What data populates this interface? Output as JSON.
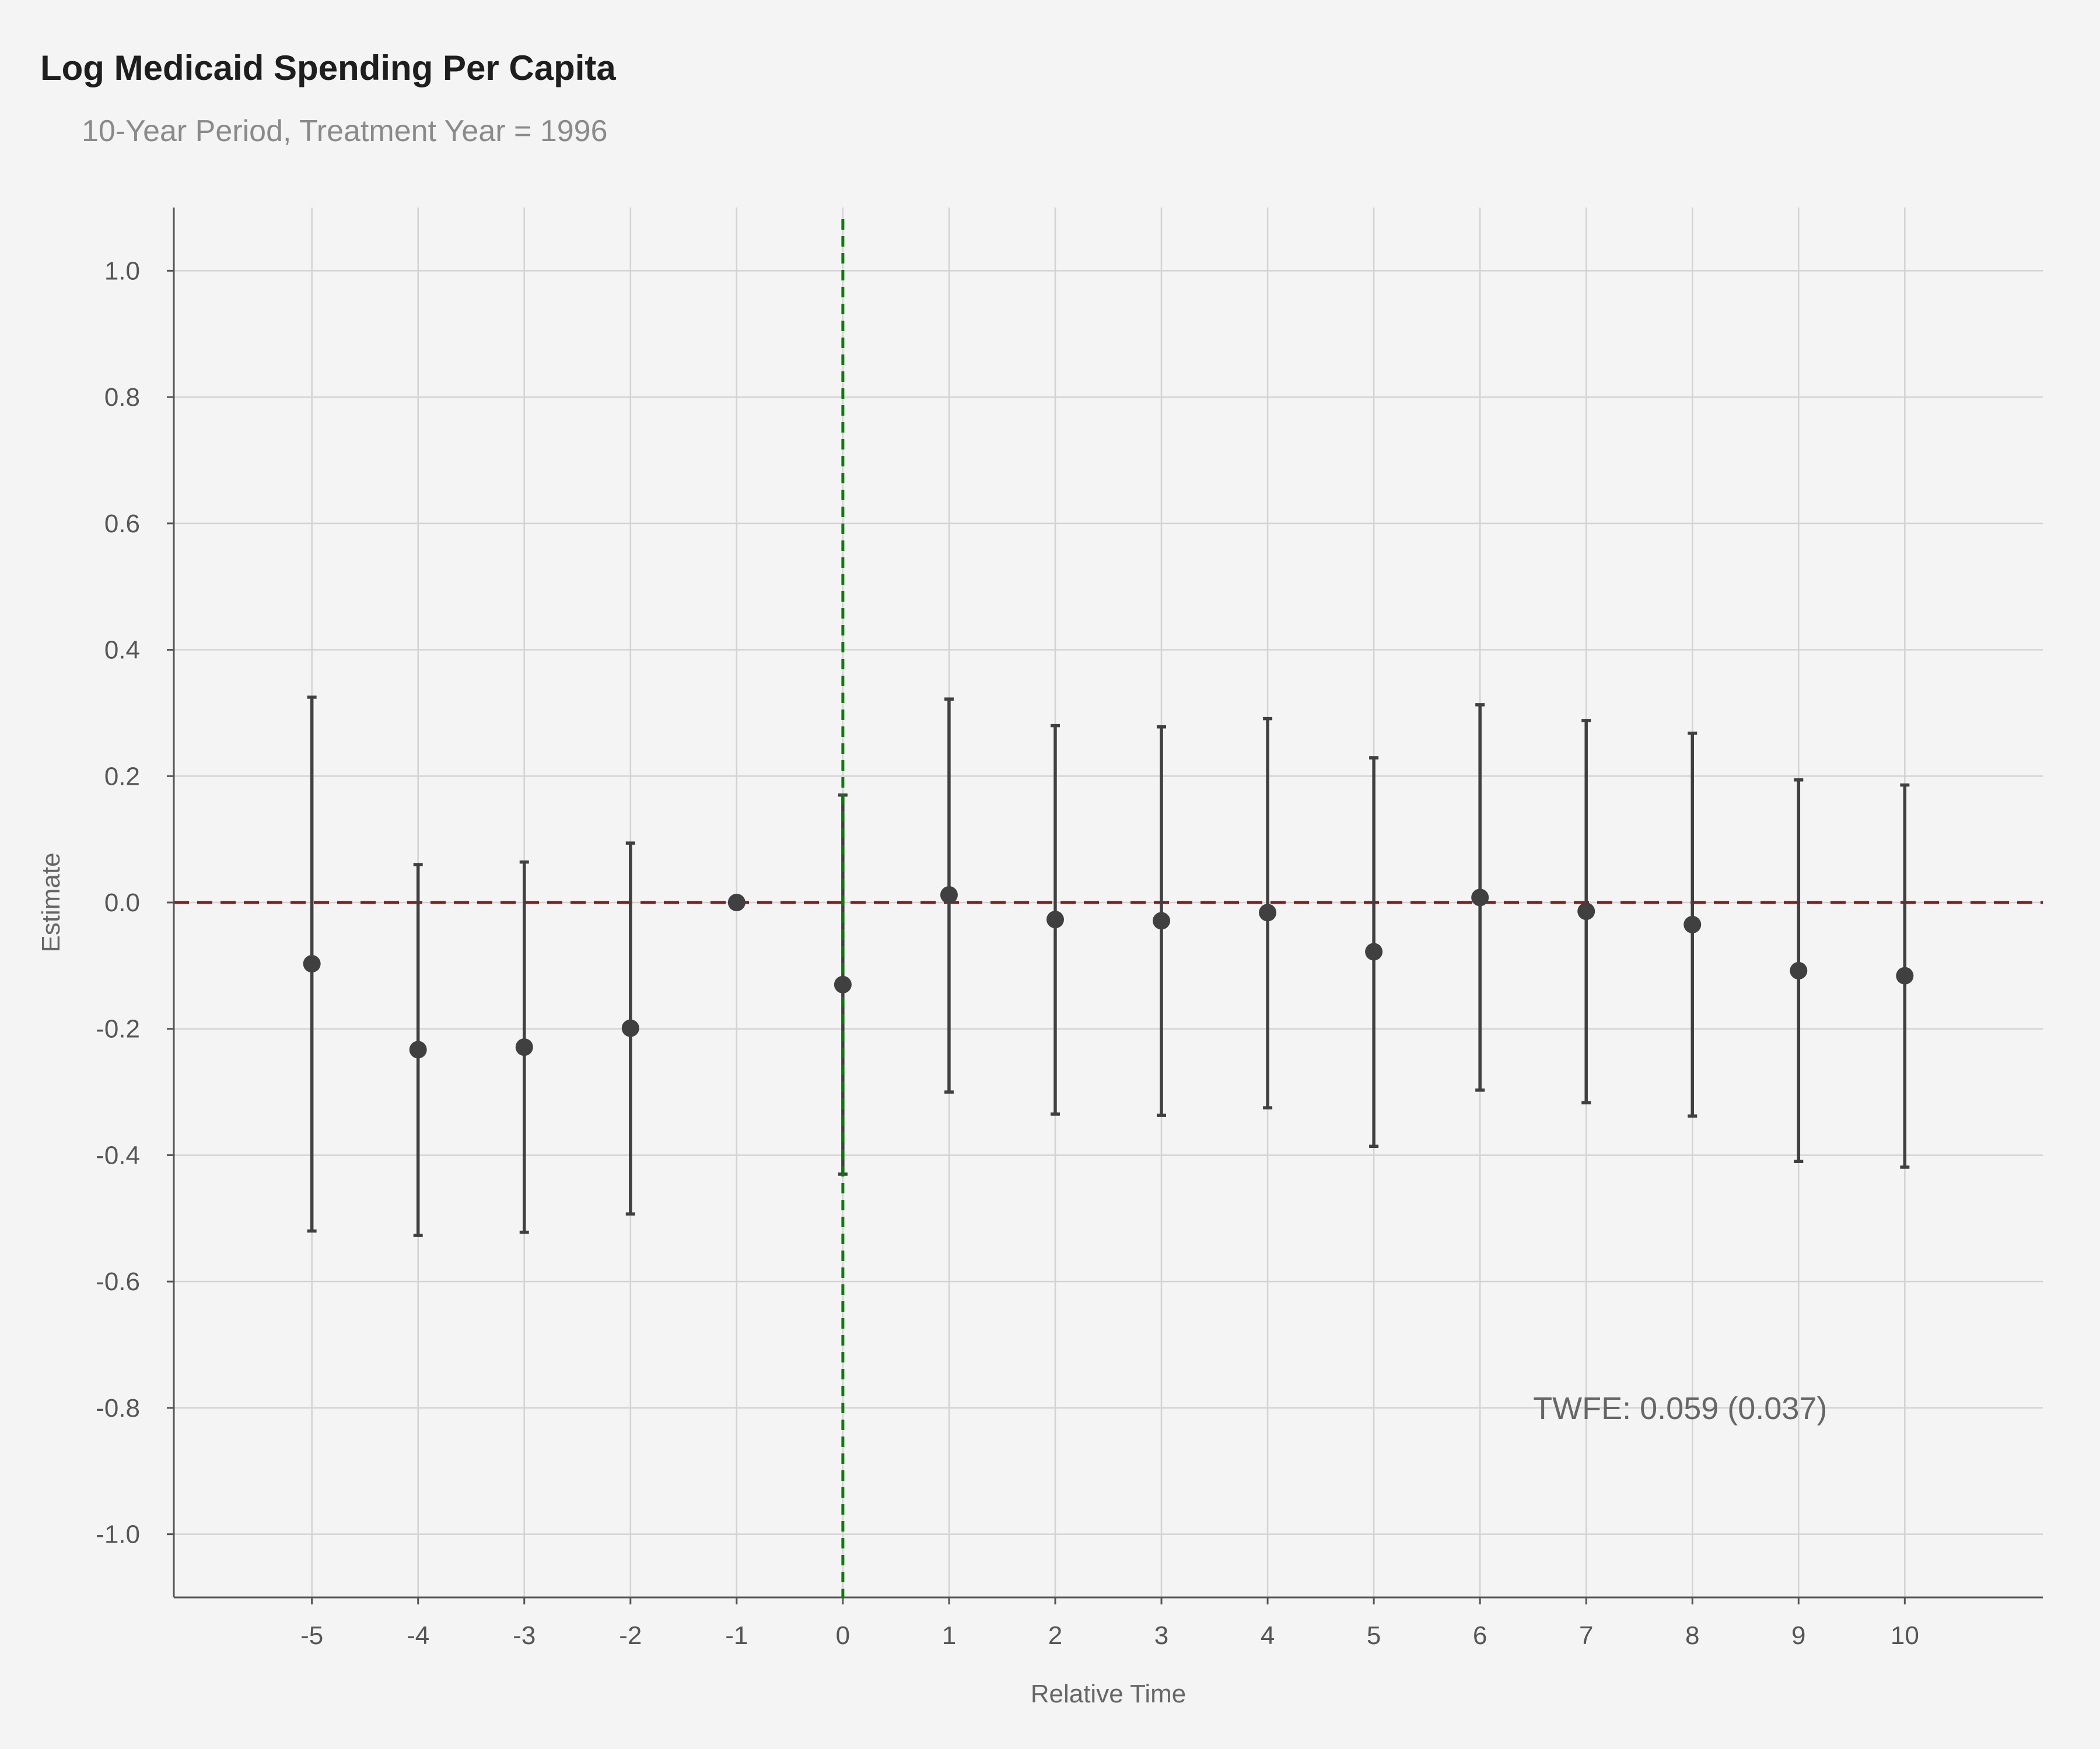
{
  "chart_data": {
    "type": "errorbar",
    "title": "Log Medicaid Spending Per Capita",
    "subtitle": "10-Year Period, Treatment Year = 1996",
    "xlabel": "Relative Time",
    "ylabel": "Estimate",
    "xlim": [
      -6.3,
      11.3
    ],
    "ylim": [
      -1.1,
      1.1
    ],
    "x_ticks": [
      -5,
      -4,
      -3,
      -2,
      -1,
      0,
      1,
      2,
      3,
      4,
      5,
      6,
      7,
      8,
      9,
      10
    ],
    "y_ticks": [
      1.0,
      0.8,
      0.6,
      0.4,
      0.2,
      0.0,
      -0.2,
      -0.4,
      -0.6,
      -0.8,
      -1.0
    ],
    "y_tick_labels": [
      "1.0",
      "0.8",
      "0.6",
      "0.4",
      "0.2",
      "0.0",
      "-0.2",
      "-0.4",
      "-0.6",
      "-0.8",
      "-1.0"
    ],
    "grid": true,
    "points": [
      {
        "x": -5,
        "y": -0.097,
        "lower": -0.52,
        "upper": 0.325
      },
      {
        "x": -4,
        "y": -0.233,
        "lower": -0.527,
        "upper": 0.06
      },
      {
        "x": -3,
        "y": -0.229,
        "lower": -0.522,
        "upper": 0.064
      },
      {
        "x": -2,
        "y": -0.199,
        "lower": -0.493,
        "upper": 0.094
      },
      {
        "x": -1,
        "y": 0.0,
        "lower": 0.0,
        "upper": 0.0
      },
      {
        "x": 0,
        "y": -0.13,
        "lower": -0.43,
        "upper": 0.17
      },
      {
        "x": 1,
        "y": 0.012,
        "lower": -0.3,
        "upper": 0.322
      },
      {
        "x": 2,
        "y": -0.027,
        "lower": -0.335,
        "upper": 0.28
      },
      {
        "x": 3,
        "y": -0.029,
        "lower": -0.337,
        "upper": 0.278
      },
      {
        "x": 4,
        "y": -0.016,
        "lower": -0.325,
        "upper": 0.291
      },
      {
        "x": 5,
        "y": -0.078,
        "lower": -0.386,
        "upper": 0.229
      },
      {
        "x": 6,
        "y": 0.008,
        "lower": -0.297,
        "upper": 0.313
      },
      {
        "x": 7,
        "y": -0.014,
        "lower": -0.317,
        "upper": 0.288
      },
      {
        "x": 8,
        "y": -0.035,
        "lower": -0.338,
        "upper": 0.268
      },
      {
        "x": 9,
        "y": -0.108,
        "lower": -0.41,
        "upper": 0.194
      },
      {
        "x": 10,
        "y": -0.116,
        "lower": -0.419,
        "upper": 0.186
      }
    ],
    "reference_lines": {
      "horizontal_y": 0,
      "vertical_x": 0
    },
    "annotation": {
      "text": "TWFE: 0.059 (0.037)",
      "x": 6.5,
      "y": -0.8
    },
    "colors": {
      "background": "#f4f4f4",
      "grid": "#d3d3d3",
      "axis": "#555555",
      "points": "#404040",
      "horizontal_reference": "#8b1a1a",
      "vertical_reference": "#008000"
    }
  }
}
